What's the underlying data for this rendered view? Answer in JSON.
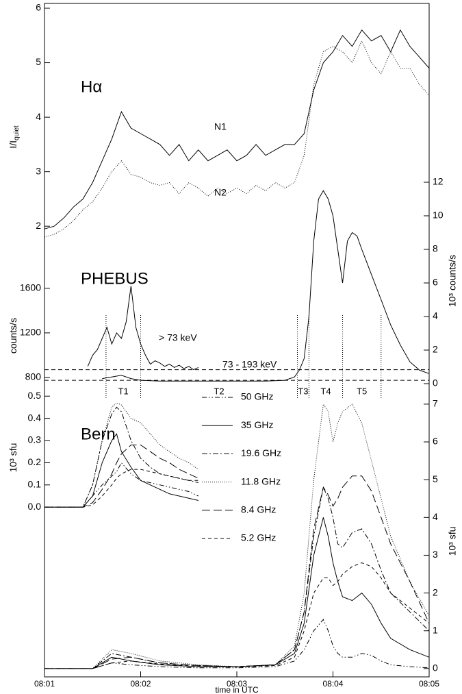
{
  "chart_data": [
    {
      "type": "line",
      "title": "Hα",
      "ylabel": "I/I",
      "ylabel_sub": "quiet",
      "xlim": [
        1,
        5
      ],
      "ylim": [
        1.6,
        6
      ],
      "yticks": [
        2,
        3,
        4,
        5,
        6
      ],
      "x": [
        1.0,
        1.1,
        1.2,
        1.3,
        1.4,
        1.5,
        1.6,
        1.7,
        1.8,
        1.9,
        2.0,
        2.1,
        2.2,
        2.3,
        2.4,
        2.5,
        2.6,
        2.7,
        2.8,
        2.9,
        3.0,
        3.1,
        3.2,
        3.3,
        3.4,
        3.5,
        3.6,
        3.7,
        3.8,
        3.9,
        4.0,
        4.1,
        4.2,
        4.3,
        4.4,
        4.5,
        4.6,
        4.7,
        4.8,
        4.9,
        5.0
      ],
      "series": [
        {
          "name": "N1",
          "color": "#000000",
          "dash": "none",
          "values": [
            1.95,
            2.0,
            2.15,
            2.35,
            2.5,
            2.8,
            3.2,
            3.6,
            4.1,
            3.8,
            3.7,
            3.6,
            3.5,
            3.3,
            3.5,
            3.2,
            3.4,
            3.2,
            3.3,
            3.4,
            3.2,
            3.3,
            3.5,
            3.3,
            3.4,
            3.5,
            3.5,
            3.7,
            4.5,
            5.0,
            5.2,
            5.5,
            5.3,
            5.6,
            5.4,
            5.5,
            5.2,
            5.6,
            5.3,
            5.1,
            4.9
          ]
        },
        {
          "name": "N2",
          "color": "#000000",
          "dash": "1,2",
          "values": [
            1.8,
            1.85,
            1.95,
            2.1,
            2.3,
            2.45,
            2.7,
            3.0,
            3.2,
            2.95,
            2.9,
            2.8,
            2.75,
            2.8,
            2.6,
            2.8,
            2.7,
            2.55,
            2.7,
            2.6,
            2.7,
            2.6,
            2.75,
            2.65,
            2.8,
            2.7,
            2.8,
            3.3,
            4.6,
            5.2,
            5.3,
            5.2,
            5.0,
            5.4,
            5.0,
            4.8,
            5.2,
            4.9,
            4.9,
            4.6,
            4.4
          ]
        }
      ]
    },
    {
      "type": "line",
      "title": "PHEBUS",
      "ylabel": "counts/s",
      "y2label": "10³ counts/s",
      "xlim": [
        1,
        5
      ],
      "ylim": [
        745,
        2550
      ],
      "yticks": [
        800,
        1200,
        1600
      ],
      "y2lim": [
        0,
        12
      ],
      "y2ticks": [
        0,
        2,
        4,
        6,
        8,
        10,
        12
      ],
      "baselines": [
        {
          "value": 870,
          "axis": "y"
        },
        {
          "value": 0.2,
          "axis": "y2"
        }
      ],
      "interval_bounds": [
        1.64,
        2.0,
        3.63,
        3.75,
        4.1,
        4.5
      ],
      "interval_labels": [
        "T1",
        "T2",
        "T3",
        "T4",
        "T5"
      ],
      "series": [
        {
          "name": "> 73 keV",
          "color": "#000000",
          "dash": "none",
          "axis": "y",
          "x": [
            1.45,
            1.5,
            1.55,
            1.6,
            1.65,
            1.7,
            1.75,
            1.8,
            1.85,
            1.9,
            1.95,
            2.0,
            2.05,
            2.1,
            2.15,
            2.2,
            2.25,
            2.3,
            2.35,
            2.4,
            2.45,
            2.5,
            2.55,
            2.6
          ],
          "values": [
            900,
            1000,
            1050,
            1150,
            1250,
            1100,
            1200,
            1150,
            1300,
            1620,
            1250,
            1100,
            1000,
            920,
            950,
            930,
            900,
            920,
            890,
            910,
            880,
            900,
            870,
            890
          ]
        },
        {
          "name": "73 - 193 keV",
          "color": "#000000",
          "dash": "none",
          "axis": "y2",
          "x": [
            1.6,
            1.7,
            1.8,
            1.9,
            2.0,
            2.2,
            2.5,
            3.0,
            3.3,
            3.5,
            3.6,
            3.65,
            3.7,
            3.75,
            3.8,
            3.85,
            3.9,
            3.95,
            4.0,
            4.05,
            4.1,
            4.15,
            4.2,
            4.25,
            4.3,
            4.4,
            4.5,
            4.6,
            4.7,
            4.8,
            4.9,
            5.0
          ],
          "values": [
            0.3,
            0.4,
            0.5,
            0.3,
            0.2,
            0.15,
            0.15,
            0.15,
            0.15,
            0.2,
            0.4,
            0.8,
            1.5,
            4,
            8.5,
            11,
            11.5,
            11,
            10,
            8,
            6,
            8.5,
            9,
            8.8,
            8,
            6.5,
            5,
            3.5,
            2.3,
            1.3,
            0.8,
            0.6
          ]
        }
      ]
    },
    {
      "type": "line",
      "title": "Bern",
      "ylabel": "10³ sfu",
      "y2label": "10³ sfu",
      "xlabel": "time in UTC",
      "xlim": [
        1,
        5
      ],
      "xticks": [
        {
          "value": 1,
          "label": "08:01"
        },
        {
          "value": 2,
          "label": "08:02"
        },
        {
          "value": 3,
          "label": "08:03"
        },
        {
          "value": 4,
          "label": "08:04"
        },
        {
          "value": 5,
          "label": "08:05"
        }
      ],
      "ylim": [
        -0.765,
        0.51
      ],
      "yticks": [
        {
          "value": 0,
          "label": "0.0"
        },
        0.1,
        0.2,
        0.3,
        0.4,
        0.5
      ],
      "y2lim": [
        -0.22,
        7.27
      ],
      "y2ticks": [
        0,
        1,
        2,
        3,
        4,
        5,
        6,
        7
      ],
      "x": [
        1.0,
        1.5,
        1.7,
        1.9,
        2.2,
        2.6,
        3.0,
        3.4,
        3.6,
        3.7,
        3.8,
        3.9,
        3.95,
        4.0,
        4.05,
        4.1,
        4.2,
        4.3,
        4.4,
        4.5,
        4.6,
        4.8,
        5.0
      ],
      "inset_x": [
        1.0,
        1.2,
        1.4,
        1.5,
        1.6,
        1.7,
        1.75,
        1.8,
        1.9,
        2.0,
        2.1,
        2.2,
        2.3,
        2.4,
        2.5,
        2.6
      ],
      "series": [
        {
          "name": "50 GHz",
          "color": "#000000",
          "dash": "7,3,1.5,3,1.5,3",
          "axis": "y2",
          "values": [
            0,
            0,
            0.15,
            0.1,
            0.05,
            0.02,
            0.02,
            0.05,
            0.2,
            0.5,
            1.0,
            1.3,
            1.0,
            0.6,
            0.4,
            0.3,
            0.3,
            0.4,
            0.35,
            0.2,
            0.1,
            0.05,
            0.02
          ],
          "inset_values": [
            0,
            0,
            0,
            0.05,
            0.1,
            0.14,
            0.16,
            0.2,
            0.15,
            0.12,
            0.11,
            0.1,
            0.09,
            0.08,
            0.07,
            0.05
          ]
        },
        {
          "name": "35 GHz",
          "color": "#000000",
          "dash": "none",
          "axis": "y2",
          "values": [
            0,
            0,
            0.3,
            0.2,
            0.1,
            0.05,
            0.05,
            0.1,
            0.4,
            1.2,
            3.0,
            4.0,
            3.5,
            2.8,
            2.3,
            1.9,
            1.8,
            2.0,
            1.7,
            1.2,
            0.8,
            0.5,
            0.3
          ],
          "inset_values": [
            0,
            0,
            0,
            0.05,
            0.2,
            0.3,
            0.33,
            0.25,
            0.18,
            0.12,
            0.1,
            0.08,
            0.06,
            0.05,
            0.04,
            0.03
          ]
        },
        {
          "name": "19.6 GHz",
          "color": "#000000",
          "dash": "8,3,2,3",
          "axis": "y2",
          "values": [
            0,
            0,
            0.4,
            0.3,
            0.15,
            0.08,
            0.05,
            0.1,
            0.5,
            1.5,
            3.5,
            4.8,
            4.5,
            4.0,
            3.3,
            3.2,
            3.6,
            3.7,
            3.3,
            2.6,
            2.0,
            1.5,
            1.0
          ],
          "inset_values": [
            0,
            0,
            0,
            0.1,
            0.3,
            0.42,
            0.45,
            0.43,
            0.3,
            0.22,
            0.18,
            0.15,
            0.14,
            0.13,
            0.12,
            0.11
          ]
        },
        {
          "name": "11.8 GHz",
          "color": "#000000",
          "dash": "1,2",
          "axis": "y2",
          "values": [
            0,
            0,
            0.5,
            0.4,
            0.2,
            0.1,
            0.05,
            0.1,
            0.6,
            2.0,
            5.0,
            7.0,
            6.8,
            6.0,
            6.5,
            6.8,
            7.0,
            6.5,
            5.5,
            4.5,
            3.5,
            2.3,
            1.4
          ],
          "inset_values": [
            0,
            0,
            0,
            0.1,
            0.3,
            0.45,
            0.47,
            0.46,
            0.4,
            0.38,
            0.33,
            0.28,
            0.25,
            0.22,
            0.2,
            0.17
          ]
        },
        {
          "name": "8.4 GHz",
          "color": "#000000",
          "dash": "12,5",
          "axis": "y2",
          "values": [
            0,
            0,
            0.25,
            0.3,
            0.15,
            0.08,
            0.05,
            0.1,
            0.5,
            1.5,
            3.7,
            4.8,
            4.6,
            4.3,
            4.5,
            4.8,
            5.1,
            5.1,
            4.7,
            4.0,
            3.3,
            2.3,
            1.2
          ],
          "inset_values": [
            0,
            0,
            0,
            0.02,
            0.08,
            0.15,
            0.2,
            0.24,
            0.28,
            0.28,
            0.25,
            0.22,
            0.2,
            0.17,
            0.15,
            0.13
          ]
        },
        {
          "name": "5.2 GHz",
          "color": "#000000",
          "dash": "5,4",
          "axis": "y2",
          "values": [
            0,
            0,
            0.15,
            0.2,
            0.12,
            0.06,
            0.04,
            0.08,
            0.3,
            1.0,
            2.0,
            2.4,
            2.4,
            2.2,
            2.3,
            2.5,
            2.7,
            2.8,
            2.7,
            2.4,
            2.0,
            1.6,
            1.2
          ],
          "inset_values": [
            0,
            0,
            0,
            0.01,
            0.05,
            0.1,
            0.13,
            0.15,
            0.17,
            0.17,
            0.16,
            0.15,
            0.14,
            0.13,
            0.12,
            0.12
          ]
        }
      ]
    }
  ]
}
